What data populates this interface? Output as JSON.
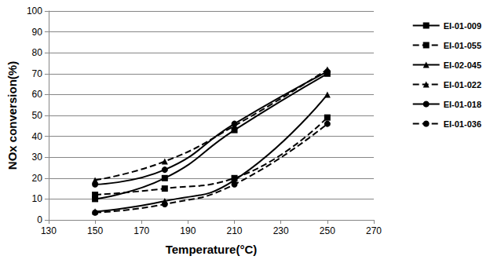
{
  "chart_data": {
    "type": "line",
    "x_label": "Temperature(°C)",
    "y_label": "NOx conversion(%)",
    "x": [
      150,
      180,
      210,
      250
    ],
    "xlim": [
      130,
      270
    ],
    "xticks": [
      130,
      150,
      170,
      190,
      210,
      230,
      250,
      270
    ],
    "ylim": [
      0,
      100
    ],
    "yticks": [
      0,
      10,
      20,
      30,
      40,
      50,
      60,
      70,
      80,
      90,
      100
    ],
    "grid": true,
    "legend": "right",
    "series": [
      {
        "name": "EI-01-009",
        "color": "#000000",
        "marker": "square",
        "line_style": "solid",
        "values": [
          10,
          20,
          43,
          70
        ]
      },
      {
        "name": "EI-01-055",
        "color": "#000000",
        "marker": "square",
        "line_style": "dashed",
        "values": [
          12,
          15,
          20,
          49
        ]
      },
      {
        "name": "EI-02-045",
        "color": "#000000",
        "marker": "triangle",
        "line_style": "solid",
        "values": [
          4,
          9,
          19,
          60
        ]
      },
      {
        "name": "EI-01-022",
        "color": "#000000",
        "marker": "triangle",
        "line_style": "dashed",
        "values": [
          19,
          28,
          45,
          72
        ]
      },
      {
        "name": "EI-01-018",
        "color": "#000000",
        "marker": "circle",
        "line_style": "solid",
        "values": [
          17,
          24,
          46,
          71
        ]
      },
      {
        "name": "EI-01-036",
        "color": "#000000",
        "marker": "circle",
        "line_style": "dashed",
        "values": [
          3.5,
          7.5,
          17,
          46
        ]
      }
    ]
  }
}
